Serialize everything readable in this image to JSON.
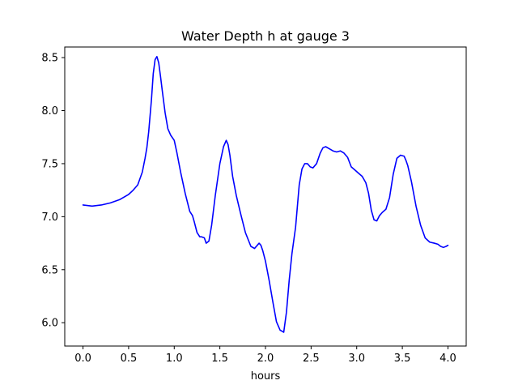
{
  "chart_data": {
    "type": "line",
    "title": "Water Depth h at gauge 3",
    "xlabel": "hours",
    "ylabel": "",
    "xlim": [
      -0.2,
      4.2
    ],
    "ylim": [
      5.78,
      8.6
    ],
    "x_ticks": [
      0.0,
      0.5,
      1.0,
      1.5,
      2.0,
      2.5,
      3.0,
      3.5,
      4.0
    ],
    "x_tick_labels": [
      "0.0",
      "0.5",
      "1.0",
      "1.5",
      "2.0",
      "2.5",
      "3.0",
      "3.5",
      "4.0"
    ],
    "y_ticks": [
      6.0,
      6.5,
      7.0,
      7.5,
      8.0,
      8.5
    ],
    "y_tick_labels": [
      "6.0",
      "6.5",
      "7.0",
      "7.5",
      "8.0",
      "8.5"
    ],
    "grid": false,
    "legend": "none",
    "series": [
      {
        "color": "#0000ff",
        "x": [
          0.0,
          0.1,
          0.2,
          0.3,
          0.4,
          0.5,
          0.55,
          0.6,
          0.65,
          0.68,
          0.7,
          0.72,
          0.75,
          0.77,
          0.79,
          0.81,
          0.83,
          0.85,
          0.87,
          0.9,
          0.93,
          0.96,
          1.0,
          1.03,
          1.07,
          1.12,
          1.17,
          1.2,
          1.22,
          1.25,
          1.28,
          1.3,
          1.33,
          1.35,
          1.38,
          1.41,
          1.45,
          1.5,
          1.54,
          1.57,
          1.59,
          1.61,
          1.64,
          1.68,
          1.73,
          1.78,
          1.84,
          1.88,
          1.91,
          1.93,
          1.95,
          1.97,
          2.0,
          2.04,
          2.08,
          2.12,
          2.16,
          2.2,
          2.23,
          2.26,
          2.29,
          2.33,
          2.37,
          2.4,
          2.43,
          2.46,
          2.49,
          2.52,
          2.56,
          2.6,
          2.63,
          2.66,
          2.7,
          2.74,
          2.78,
          2.82,
          2.86,
          2.9,
          2.94,
          2.98,
          3.02,
          3.06,
          3.1,
          3.13,
          3.16,
          3.19,
          3.22,
          3.25,
          3.28,
          3.32,
          3.36,
          3.4,
          3.44,
          3.48,
          3.52,
          3.54,
          3.56,
          3.6,
          3.65,
          3.7,
          3.75,
          3.8,
          3.85,
          3.89,
          3.92,
          3.95,
          3.98,
          4.0
        ],
        "y": [
          7.11,
          7.1,
          7.11,
          7.13,
          7.16,
          7.21,
          7.25,
          7.3,
          7.42,
          7.55,
          7.65,
          7.8,
          8.1,
          8.35,
          8.48,
          8.51,
          8.45,
          8.32,
          8.18,
          7.98,
          7.83,
          7.77,
          7.72,
          7.6,
          7.42,
          7.22,
          7.05,
          7.01,
          6.95,
          6.85,
          6.81,
          6.81,
          6.8,
          6.75,
          6.77,
          6.92,
          7.2,
          7.5,
          7.66,
          7.72,
          7.68,
          7.58,
          7.38,
          7.2,
          7.02,
          6.85,
          6.72,
          6.7,
          6.73,
          6.75,
          6.73,
          6.68,
          6.58,
          6.4,
          6.2,
          6.01,
          5.93,
          5.91,
          6.1,
          6.4,
          6.65,
          6.9,
          7.3,
          7.45,
          7.5,
          7.5,
          7.47,
          7.46,
          7.5,
          7.6,
          7.65,
          7.66,
          7.64,
          7.62,
          7.61,
          7.62,
          7.6,
          7.56,
          7.47,
          7.44,
          7.41,
          7.38,
          7.32,
          7.22,
          7.06,
          6.97,
          6.96,
          7.01,
          7.04,
          7.07,
          7.18,
          7.4,
          7.55,
          7.58,
          7.57,
          7.53,
          7.48,
          7.33,
          7.1,
          6.92,
          6.8,
          6.76,
          6.75,
          6.74,
          6.72,
          6.71,
          6.72,
          6.73
        ]
      }
    ]
  }
}
